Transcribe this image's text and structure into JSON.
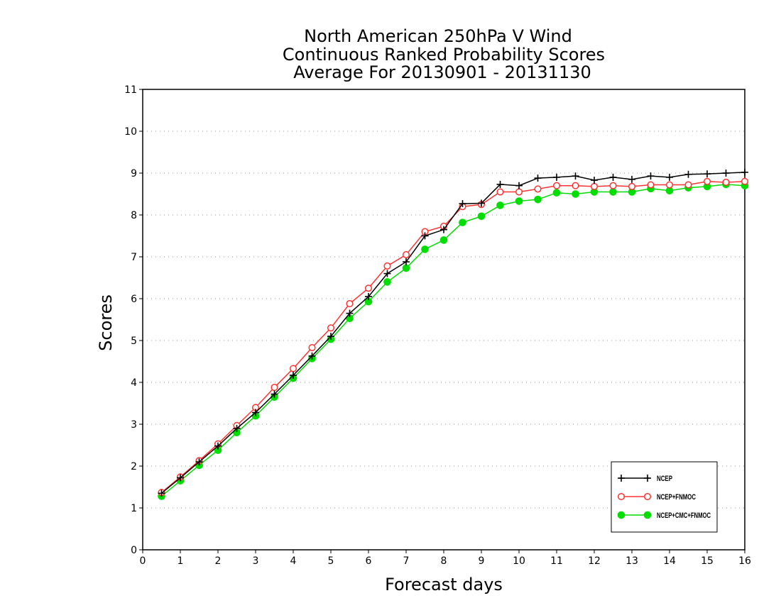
{
  "chart_data": {
    "type": "line",
    "title": [
      "North American 250hPa V Wind",
      "Continuous Ranked Probability Scores",
      "Average For 20130901 - 20131130"
    ],
    "xlabel": "Forecast days",
    "ylabel": "Scores",
    "xlim": [
      0,
      16
    ],
    "ylim": [
      0,
      11
    ],
    "xticks": [
      "0",
      "1",
      "2",
      "3",
      "4",
      "5",
      "6",
      "7",
      "8",
      "9",
      "10",
      "11",
      "12",
      "13",
      "14",
      "15",
      "16"
    ],
    "yticks": [
      "0",
      "1",
      "2",
      "3",
      "4",
      "5",
      "6",
      "7",
      "8",
      "9",
      "10",
      "11"
    ],
    "grid": true,
    "legend_position": "bottom-right",
    "x": [
      0.5,
      1,
      1.5,
      2,
      2.5,
      3,
      3.5,
      4,
      4.5,
      5,
      5.5,
      6,
      6.5,
      7,
      7.5,
      8,
      8.5,
      9,
      9.5,
      10,
      10.5,
      11,
      11.5,
      12,
      12.5,
      13,
      13.5,
      14,
      14.5,
      15,
      15.5,
      16
    ],
    "series": [
      {
        "name": "NCEP",
        "marker": "plus",
        "color": "#000000",
        "values": [
          1.35,
          1.72,
          2.1,
          2.48,
          2.9,
          3.28,
          3.72,
          4.17,
          4.63,
          5.1,
          5.65,
          6.05,
          6.6,
          6.88,
          7.5,
          7.65,
          8.27,
          8.28,
          8.73,
          8.7,
          8.88,
          8.9,
          8.93,
          8.83,
          8.9,
          8.85,
          8.93,
          8.9,
          8.97,
          8.98,
          9.0,
          9.02
        ]
      },
      {
        "name": "NCEP+FNMOC",
        "marker": "open-circle",
        "color": "#ff3333",
        "values": [
          1.37,
          1.74,
          2.13,
          2.53,
          2.97,
          3.4,
          3.88,
          4.33,
          4.83,
          5.3,
          5.88,
          6.25,
          6.78,
          7.05,
          7.6,
          7.73,
          8.2,
          8.25,
          8.55,
          8.55,
          8.62,
          8.7,
          8.7,
          8.68,
          8.7,
          8.68,
          8.72,
          8.72,
          8.72,
          8.8,
          8.78,
          8.8
        ]
      },
      {
        "name": "NCEP+CMC+FNMOC",
        "marker": "filled-circle",
        "color": "#00dd00",
        "values": [
          1.28,
          1.65,
          2.02,
          2.38,
          2.8,
          3.2,
          3.65,
          4.1,
          4.57,
          5.03,
          5.53,
          5.93,
          6.4,
          6.73,
          7.18,
          7.4,
          7.82,
          7.97,
          8.23,
          8.33,
          8.37,
          8.53,
          8.5,
          8.55,
          8.55,
          8.55,
          8.63,
          8.58,
          8.65,
          8.68,
          8.73,
          8.7
        ]
      }
    ]
  }
}
